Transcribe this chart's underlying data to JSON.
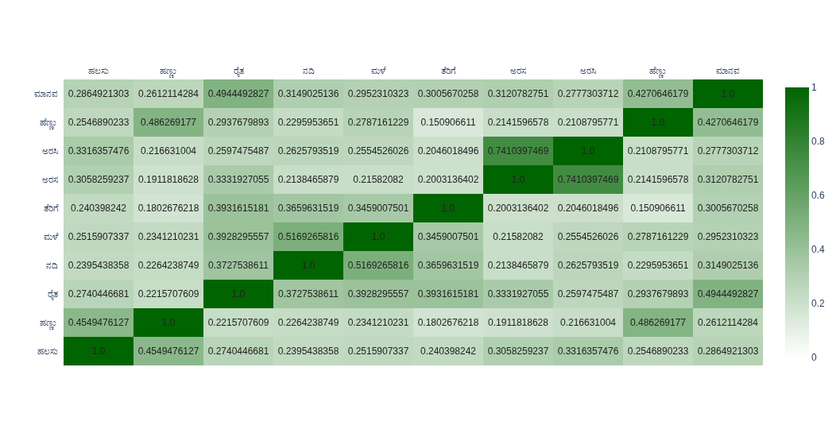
{
  "chart_data": {
    "type": "heatmap",
    "categories": [
      "ಹಲಸು",
      "ಹಣ್ಣು",
      "ರೈತ",
      "ನದಿ",
      "ಮಳೆ",
      "ತೆರಿಗೆ",
      "ಅರಸ",
      "ಅರಸಿ",
      "ಹೆಣ್ಣು",
      "ಮಾನವ"
    ],
    "y_categories": [
      "ಮಾನವ",
      "ಹೆಣ್ಣು",
      "ಅರಸಿ",
      "ಅರಸ",
      "ತೆರಿಗೆ",
      "ಮಳೆ",
      "ನದಿ",
      "ರೈತ",
      "ಹಣ್ಣು",
      "ಹಲಸು"
    ],
    "cells": [
      [
        0.2864921303,
        0.2612114284,
        0.4944492827,
        0.3149025136,
        0.2952310323,
        0.3005670258,
        0.3120782751,
        0.2777303712,
        0.4270646179,
        1.0
      ],
      [
        0.2546890233,
        0.486269177,
        0.2937679893,
        0.2295953651,
        0.2787161229,
        0.150906611,
        0.2141596578,
        0.2108795771,
        1.0,
        0.4270646179
      ],
      [
        0.3316357476,
        0.216631004,
        0.2597475487,
        0.2625793519,
        0.2554526026,
        0.2046018496,
        0.7410397469,
        1.0,
        0.2108795771,
        0.2777303712
      ],
      [
        0.3058259237,
        0.1911818628,
        0.3331927055,
        0.2138465879,
        0.21582082,
        0.2003136402,
        1.0,
        0.7410397469,
        0.2141596578,
        0.3120782751
      ],
      [
        0.240398242,
        0.1802676218,
        0.3931615181,
        0.3659631519,
        0.3459007501,
        1.0,
        0.2003136402,
        0.2046018496,
        0.150906611,
        0.3005670258
      ],
      [
        0.2515907337,
        0.2341210231,
        0.3928295557,
        0.5169265816,
        1.0,
        0.3459007501,
        0.21582082,
        0.2554526026,
        0.2787161229,
        0.2952310323
      ],
      [
        0.2395438358,
        0.2264238749,
        0.3727538611,
        1.0,
        0.5169265816,
        0.3659631519,
        0.2138465879,
        0.2625793519,
        0.2295953651,
        0.3149025136
      ],
      [
        0.2740446681,
        0.2215707609,
        1.0,
        0.3727538611,
        0.3928295557,
        0.3931615181,
        0.3331927055,
        0.2597475487,
        0.2937679893,
        0.4944492827
      ],
      [
        0.4549476127,
        1.0,
        0.2215707609,
        0.2264238749,
        0.2341210231,
        0.1802676218,
        0.1911818628,
        0.216631004,
        0.486269177,
        0.2612114284
      ],
      [
        1.0,
        0.4549476127,
        0.2740446681,
        0.2395438358,
        0.2515907337,
        0.240398242,
        0.3058259237,
        0.3316357476,
        0.2546890233,
        0.2864921303
      ]
    ],
    "cell_labels": [
      [
        "0.2864921303",
        "0.2612114284",
        "0.4944492827",
        "0.3149025136",
        "0.2952310323",
        "0.3005670258",
        "0.3120782751",
        "0.2777303712",
        "0.4270646179",
        "1.0"
      ],
      [
        "0.2546890233",
        "0.486269177",
        "0.2937679893",
        "0.2295953651",
        "0.2787161229",
        "0.150906611",
        "0.2141596578",
        "0.2108795771",
        "1.0",
        "0.4270646179"
      ],
      [
        "0.3316357476",
        "0.216631004",
        "0.2597475487",
        "0.2625793519",
        "0.2554526026",
        "0.2046018496",
        "0.7410397469",
        "1.0",
        "0.2108795771",
        "0.2777303712"
      ],
      [
        "0.3058259237",
        "0.1911818628",
        "0.3331927055",
        "0.2138465879",
        "0.21582082",
        "0.2003136402",
        "1.0",
        "0.7410397469",
        "0.2141596578",
        "0.3120782751"
      ],
      [
        "0.240398242",
        "0.1802676218",
        "0.3931615181",
        "0.3659631519",
        "0.3459007501",
        "1.0",
        "0.2003136402",
        "0.2046018496",
        "0.150906611",
        "0.3005670258"
      ],
      [
        "0.2515907337",
        "0.2341210231",
        "0.3928295557",
        "0.5169265816",
        "1.0",
        "0.3459007501",
        "0.21582082",
        "0.2554526026",
        "0.2787161229",
        "0.2952310323"
      ],
      [
        "0.2395438358",
        "0.2264238749",
        "0.3727538611",
        "1.0",
        "0.5169265816",
        "0.3659631519",
        "0.2138465879",
        "0.2625793519",
        "0.2295953651",
        "0.3149025136"
      ],
      [
        "0.2740446681",
        "0.2215707609",
        "1.0",
        "0.3727538611",
        "0.3928295557",
        "0.3931615181",
        "0.3331927055",
        "0.2597475487",
        "0.2937679893",
        "0.4944492827"
      ],
      [
        "0.4549476127",
        "1.0",
        "0.2215707609",
        "0.2264238749",
        "0.2341210231",
        "0.1802676218",
        "0.1911818628",
        "0.216631004",
        "0.486269177",
        "0.2612114284"
      ],
      [
        "1.0",
        "0.4549476127",
        "0.2740446681",
        "0.2395438358",
        "0.2515907337",
        "0.240398242",
        "0.3058259237",
        "0.3316357476",
        "0.2546890233",
        "0.2864921303"
      ]
    ],
    "clim": [
      0,
      1
    ],
    "cticks": [
      0,
      0.2,
      0.4,
      0.6,
      0.8,
      1
    ]
  }
}
